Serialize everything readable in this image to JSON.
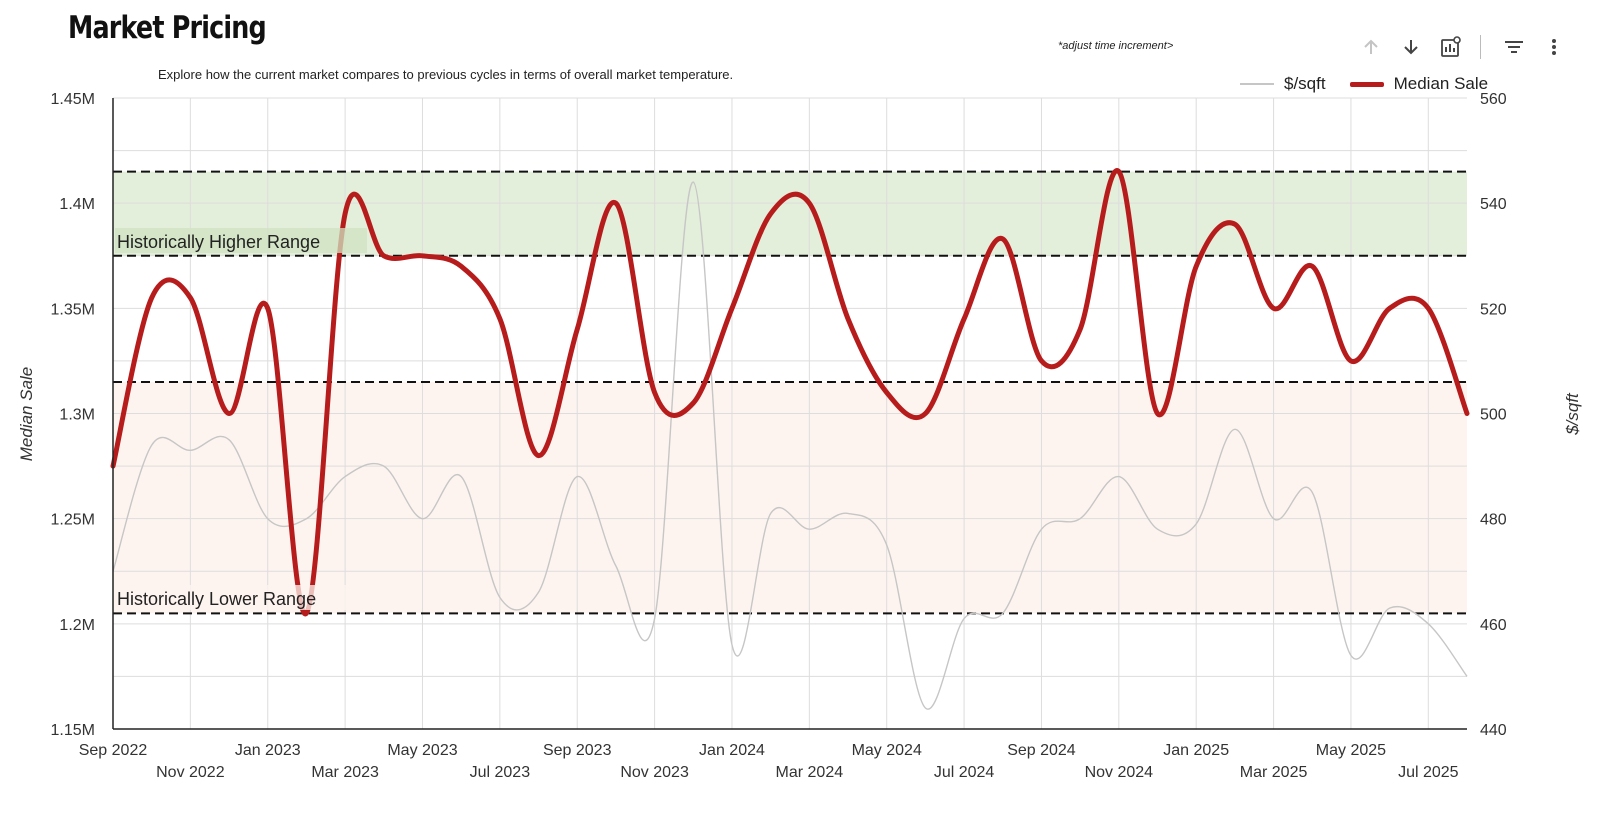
{
  "header": {
    "title": "Market Pricing",
    "subtitle": "Explore how the current market compares to previous cycles in terms of overall market temperature.",
    "hint": "*adjust time increment>"
  },
  "toolbar": {
    "icons": [
      "arrow-up-icon",
      "arrow-down-icon",
      "chart-settings-icon",
      "filter-icon",
      "more-vertical-icon"
    ]
  },
  "colors": {
    "median": "#b71c1c",
    "sqft": "#c6c6c6",
    "high_band": "#e3eedb",
    "low_band": "#fdf4ef",
    "grid": "#dddddd"
  },
  "chart_data": {
    "type": "line",
    "x": [
      "2022-09",
      "2022-10",
      "2022-11",
      "2022-12",
      "2023-01",
      "2023-02",
      "2023-03",
      "2023-04",
      "2023-05",
      "2023-06",
      "2023-07",
      "2023-08",
      "2023-09",
      "2023-10",
      "2023-11",
      "2023-12",
      "2024-01",
      "2024-02",
      "2024-03",
      "2024-04",
      "2024-05",
      "2024-06",
      "2024-07",
      "2024-08",
      "2024-09",
      "2024-10",
      "2024-11",
      "2024-12",
      "2025-01",
      "2025-02",
      "2025-03",
      "2025-04",
      "2025-05",
      "2025-06",
      "2025-07",
      "2025-08"
    ],
    "x_tick_labels": [
      "Sep 2022",
      "Nov 2022",
      "Jan 2023",
      "Mar 2023",
      "May 2023",
      "Jul 2023",
      "Sep 2023",
      "Nov 2023",
      "Jan 2024",
      "Mar 2024",
      "May 2024",
      "Jul 2024",
      "Sep 2024",
      "Nov 2024",
      "Jan 2025",
      "Mar 2025",
      "May 2025",
      "Jul 2025"
    ],
    "series": [
      {
        "name": "Median Sale",
        "axis": "left",
        "values": [
          1275000,
          1355000,
          1355000,
          1300000,
          1350000,
          1205000,
          1395000,
          1375000,
          1375000,
          1370000,
          1345000,
          1280000,
          1340000,
          1400000,
          1310000,
          1305000,
          1350000,
          1395000,
          1400000,
          1345000,
          1310000,
          1300000,
          1345000,
          1383000,
          1325000,
          1340000,
          1415000,
          1300000,
          1370000,
          1390000,
          1350000,
          1370000,
          1325000,
          1350000,
          1350000,
          1300000
        ]
      },
      {
        "name": "$/sqft",
        "axis": "right",
        "values": [
          470,
          494,
          493,
          495,
          480,
          480,
          488,
          490,
          480,
          488,
          465,
          466,
          488,
          471,
          461,
          544,
          456,
          481,
          478,
          481,
          475,
          444,
          461,
          462,
          478,
          480,
          488,
          478,
          479,
          497,
          480,
          485,
          454,
          463,
          460,
          450
        ]
      }
    ],
    "ylabel": "Median Sale",
    "y2label": "$/sqft",
    "ylim": [
      1150000,
      1450000
    ],
    "y2lim": [
      440,
      560
    ],
    "y_ticks": [
      "1.15M",
      "1.2M",
      "1.25M",
      "1.3M",
      "1.35M",
      "1.4M",
      "1.45M"
    ],
    "y2_ticks": [
      "440",
      "460",
      "480",
      "500",
      "520",
      "540",
      "560"
    ],
    "bands": [
      {
        "label": "Historically Higher Range",
        "from": 1375000,
        "to": 1415000
      },
      {
        "label": "Historically Lower Range",
        "from": 1205000,
        "to": 1315000
      }
    ],
    "legend_position": "top-right",
    "grid": true
  }
}
